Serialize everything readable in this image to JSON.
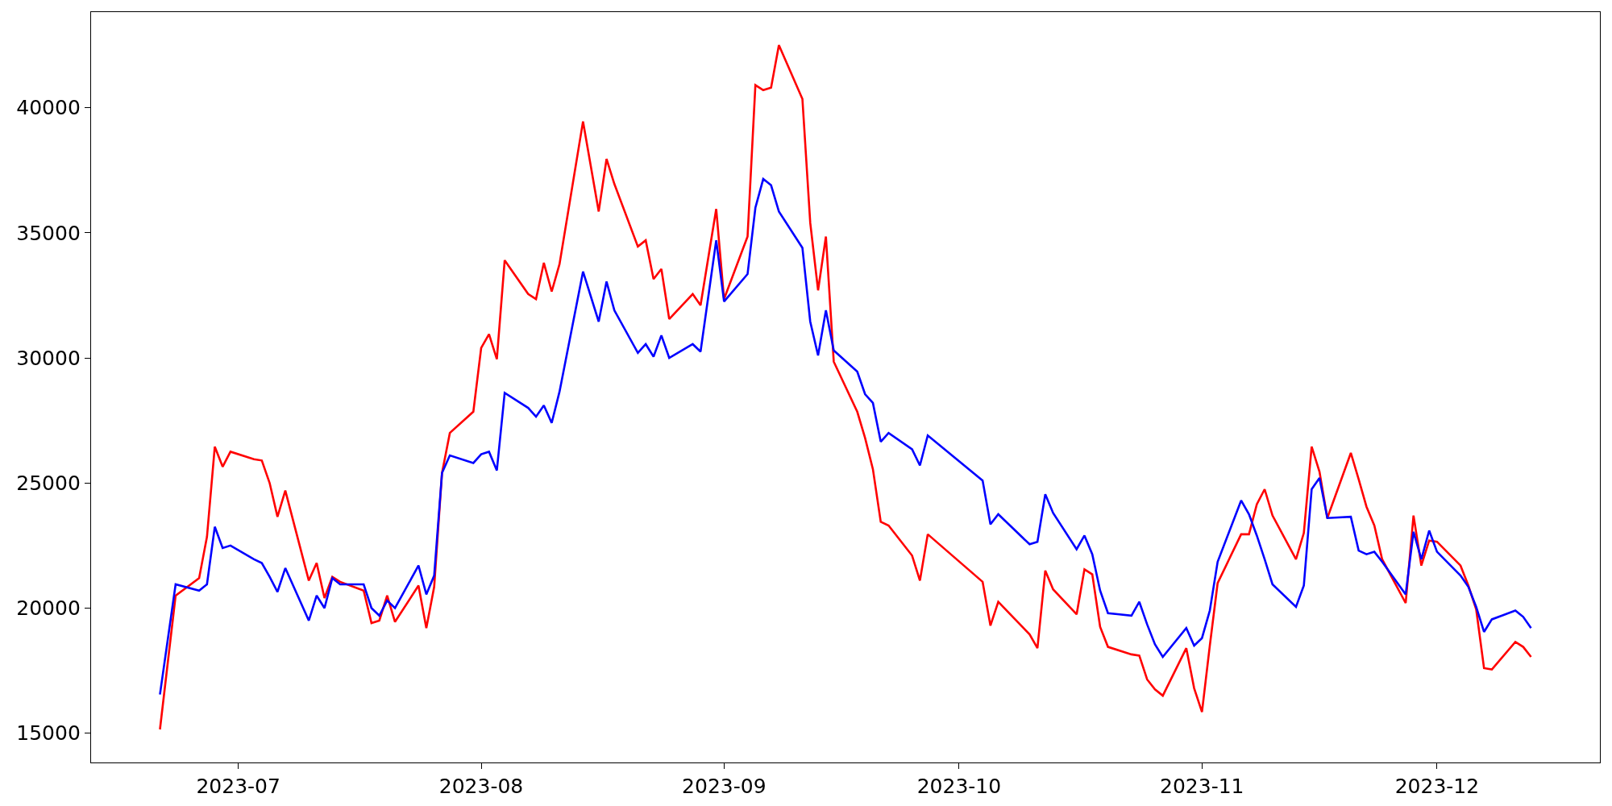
{
  "chart_data": {
    "type": "line",
    "x": [
      "2023-06-21",
      "2023-06-23",
      "2023-06-26",
      "2023-06-27",
      "2023-06-28",
      "2023-06-29",
      "2023-06-30",
      "2023-07-03",
      "2023-07-04",
      "2023-07-05",
      "2023-07-06",
      "2023-07-07",
      "2023-07-10",
      "2023-07-11",
      "2023-07-12",
      "2023-07-13",
      "2023-07-14",
      "2023-07-17",
      "2023-07-18",
      "2023-07-19",
      "2023-07-20",
      "2023-07-21",
      "2023-07-24",
      "2023-07-25",
      "2023-07-26",
      "2023-07-27",
      "2023-07-28",
      "2023-07-31",
      "2023-08-01",
      "2023-08-02",
      "2023-08-03",
      "2023-08-04",
      "2023-08-07",
      "2023-08-08",
      "2023-08-09",
      "2023-08-10",
      "2023-08-11",
      "2023-08-14",
      "2023-08-16",
      "2023-08-17",
      "2023-08-18",
      "2023-08-21",
      "2023-08-22",
      "2023-08-23",
      "2023-08-24",
      "2023-08-25",
      "2023-08-28",
      "2023-08-29",
      "2023-08-31",
      "2023-09-01",
      "2023-09-04",
      "2023-09-05",
      "2023-09-06",
      "2023-09-07",
      "2023-09-08",
      "2023-09-11",
      "2023-09-12",
      "2023-09-13",
      "2023-09-14",
      "2023-09-15",
      "2023-09-18",
      "2023-09-19",
      "2023-09-20",
      "2023-09-21",
      "2023-09-22",
      "2023-09-25",
      "2023-09-26",
      "2023-09-27",
      "2023-10-04",
      "2023-10-05",
      "2023-10-06",
      "2023-10-10",
      "2023-10-11",
      "2023-10-12",
      "2023-10-13",
      "2023-10-16",
      "2023-10-17",
      "2023-10-18",
      "2023-10-19",
      "2023-10-20",
      "2023-10-23",
      "2023-10-24",
      "2023-10-25",
      "2023-10-26",
      "2023-10-27",
      "2023-10-30",
      "2023-10-31",
      "2023-11-01",
      "2023-11-02",
      "2023-11-03",
      "2023-11-06",
      "2023-11-07",
      "2023-11-08",
      "2023-11-09",
      "2023-11-10",
      "2023-11-13",
      "2023-11-14",
      "2023-11-15",
      "2023-11-16",
      "2023-11-17",
      "2023-11-20",
      "2023-11-21",
      "2023-11-22",
      "2023-11-23",
      "2023-11-24",
      "2023-11-27",
      "2023-11-28",
      "2023-11-29",
      "2023-11-30",
      "2023-12-01",
      "2023-12-04",
      "2023-12-05",
      "2023-12-06",
      "2023-12-07",
      "2023-12-08",
      "2023-12-11",
      "2023-12-12",
      "2023-12-13"
    ],
    "series": [
      {
        "color": "#ff0000",
        "values": [
          15150,
          20500,
          21200,
          22850,
          26450,
          25650,
          26250,
          25950,
          25900,
          25000,
          23650,
          24700,
          21100,
          21800,
          20400,
          21250,
          21050,
          20700,
          19400,
          19500,
          20500,
          19450,
          20900,
          19200,
          20850,
          25400,
          27000,
          27850,
          30400,
          30950,
          29950,
          33900,
          32550,
          32350,
          33800,
          32650,
          33750,
          39450,
          35850,
          37950,
          36950,
          34450,
          34700,
          33150,
          33550,
          31550,
          32550,
          32100,
          35950,
          32350,
          34850,
          40900,
          40700,
          40800,
          42500,
          40350,
          35400,
          32700,
          34850,
          29850,
          27850,
          26800,
          25550,
          23450,
          23300,
          22100,
          21100,
          22950,
          21050,
          19300,
          20250,
          18950,
          18400,
          21500,
          20750,
          19750,
          21550,
          21350,
          19250,
          18450,
          18150,
          18100,
          17150,
          16750,
          16500,
          18400,
          16800,
          15850,
          18500,
          21000,
          22950,
          22950,
          24150,
          24750,
          23700,
          21950,
          23000,
          26450,
          25450,
          23600,
          26200,
          25150,
          24050,
          23300,
          21950,
          20200,
          23700,
          21700,
          22700,
          22650,
          21700,
          20900,
          19950,
          17600,
          17550,
          18650,
          18450,
          18050
        ]
      },
      {
        "color": "#0000ff",
        "values": [
          16550,
          20950,
          20700,
          20950,
          23250,
          22400,
          22500,
          21950,
          21800,
          21250,
          20650,
          21600,
          19500,
          20500,
          20000,
          21200,
          20950,
          20950,
          20000,
          19700,
          20300,
          20000,
          21700,
          20550,
          21300,
          25400,
          26100,
          25800,
          26150,
          26250,
          25500,
          28600,
          28000,
          27650,
          28100,
          27400,
          28650,
          33450,
          31450,
          33050,
          31900,
          30200,
          30550,
          30050,
          30900,
          30000,
          30550,
          30250,
          34700,
          32250,
          33350,
          36000,
          37150,
          36900,
          35850,
          34400,
          31450,
          30100,
          31900,
          30300,
          29450,
          28550,
          28200,
          26650,
          27000,
          26350,
          25700,
          26900,
          25100,
          23350,
          23750,
          22550,
          22650,
          24550,
          23800,
          22350,
          22900,
          22150,
          20700,
          19800,
          19700,
          20250,
          19350,
          18550,
          18050,
          19200,
          18500,
          18800,
          19900,
          21850,
          24300,
          23750,
          22900,
          21950,
          20950,
          20050,
          20900,
          24750,
          25200,
          23600,
          23650,
          22300,
          22150,
          22250,
          21850,
          20550,
          23050,
          21950,
          23100,
          22250,
          21300,
          20850,
          20050,
          19050,
          19550,
          19900,
          19650,
          19200
        ]
      }
    ],
    "xlim": [
      "2023-06-12T05:00",
      "2023-12-21T19:00"
    ],
    "xticks": [
      {
        "value": "2023-07-01",
        "label": "2023-07"
      },
      {
        "value": "2023-08-01",
        "label": "2023-08"
      },
      {
        "value": "2023-09-01",
        "label": "2023-09"
      },
      {
        "value": "2023-10-01",
        "label": "2023-10"
      },
      {
        "value": "2023-11-01",
        "label": "2023-11"
      },
      {
        "value": "2023-12-01",
        "label": "2023-12"
      }
    ],
    "ylim": [
      13830,
      43820
    ],
    "yticks": [
      15000,
      20000,
      25000,
      30000,
      35000,
      40000
    ],
    "grid": false,
    "marker": "none",
    "line_style": "solid"
  }
}
